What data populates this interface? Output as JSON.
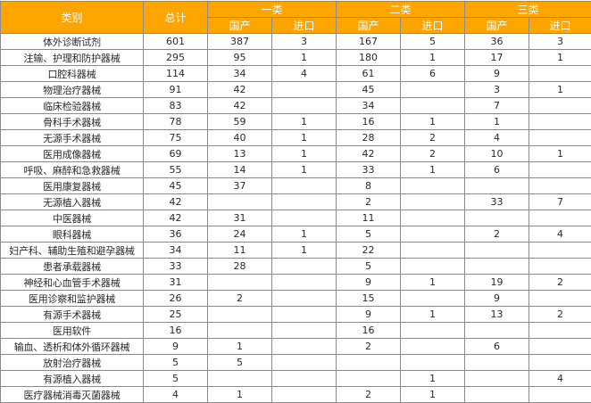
{
  "colors": {
    "header_bg": "#FFA500",
    "header_text": "#FFFFFF",
    "border": "#8A8A8A"
  },
  "header": {
    "category": "类别",
    "total": "总计",
    "groups": [
      "一类",
      "二类",
      "三类"
    ],
    "sub": [
      "国产",
      "进口"
    ]
  },
  "rows": [
    [
      "体外诊断试剂",
      "601",
      "387",
      "3",
      "167",
      "5",
      "36",
      "3"
    ],
    [
      "注输、护理和防护器械",
      "295",
      "95",
      "1",
      "180",
      "1",
      "17",
      "1"
    ],
    [
      "口腔科器械",
      "114",
      "34",
      "4",
      "61",
      "6",
      "9",
      ""
    ],
    [
      "物理治疗器械",
      "91",
      "42",
      "",
      "45",
      "",
      "3",
      "1"
    ],
    [
      "临床检验器械",
      "83",
      "42",
      "",
      "34",
      "",
      "7",
      ""
    ],
    [
      "骨科手术器械",
      "78",
      "59",
      "1",
      "16",
      "1",
      "1",
      ""
    ],
    [
      "无源手术器械",
      "75",
      "40",
      "1",
      "28",
      "2",
      "4",
      ""
    ],
    [
      "医用成像器械",
      "69",
      "13",
      "1",
      "42",
      "2",
      "10",
      "1"
    ],
    [
      "呼吸、麻醉和急救器械",
      "55",
      "14",
      "1",
      "33",
      "1",
      "6",
      ""
    ],
    [
      "医用康复器械",
      "45",
      "37",
      "",
      "8",
      "",
      "",
      ""
    ],
    [
      "无源植入器械",
      "42",
      "",
      "",
      "2",
      "",
      "33",
      "7"
    ],
    [
      "中医器械",
      "42",
      "31",
      "",
      "11",
      "",
      "",
      ""
    ],
    [
      "眼科器械",
      "36",
      "24",
      "1",
      "5",
      "",
      "2",
      "4"
    ],
    [
      "妇产科、辅助生殖和避孕器械",
      "34",
      "11",
      "1",
      "22",
      "",
      "",
      ""
    ],
    [
      "患者承载器械",
      "33",
      "28",
      "",
      "5",
      "",
      "",
      ""
    ],
    [
      "神经和心血管手术器械",
      "31",
      "",
      "",
      "9",
      "1",
      "19",
      "2"
    ],
    [
      "医用诊察和监护器械",
      "26",
      "2",
      "",
      "15",
      "",
      "9",
      ""
    ],
    [
      "有源手术器械",
      "25",
      "",
      "",
      "9",
      "1",
      "13",
      "2"
    ],
    [
      "医用软件",
      "16",
      "",
      "",
      "16",
      "",
      "",
      ""
    ],
    [
      "输血、透析和体外循环器械",
      "9",
      "1",
      "",
      "2",
      "",
      "6",
      ""
    ],
    [
      "放射治疗器械",
      "5",
      "5",
      "",
      "",
      "",
      "",
      ""
    ],
    [
      "有源植入器械",
      "5",
      "",
      "",
      "",
      "1",
      "",
      "4"
    ],
    [
      "医疗器械消毒灭菌器械",
      "4",
      "1",
      "",
      "2",
      "1",
      "",
      ""
    ]
  ]
}
